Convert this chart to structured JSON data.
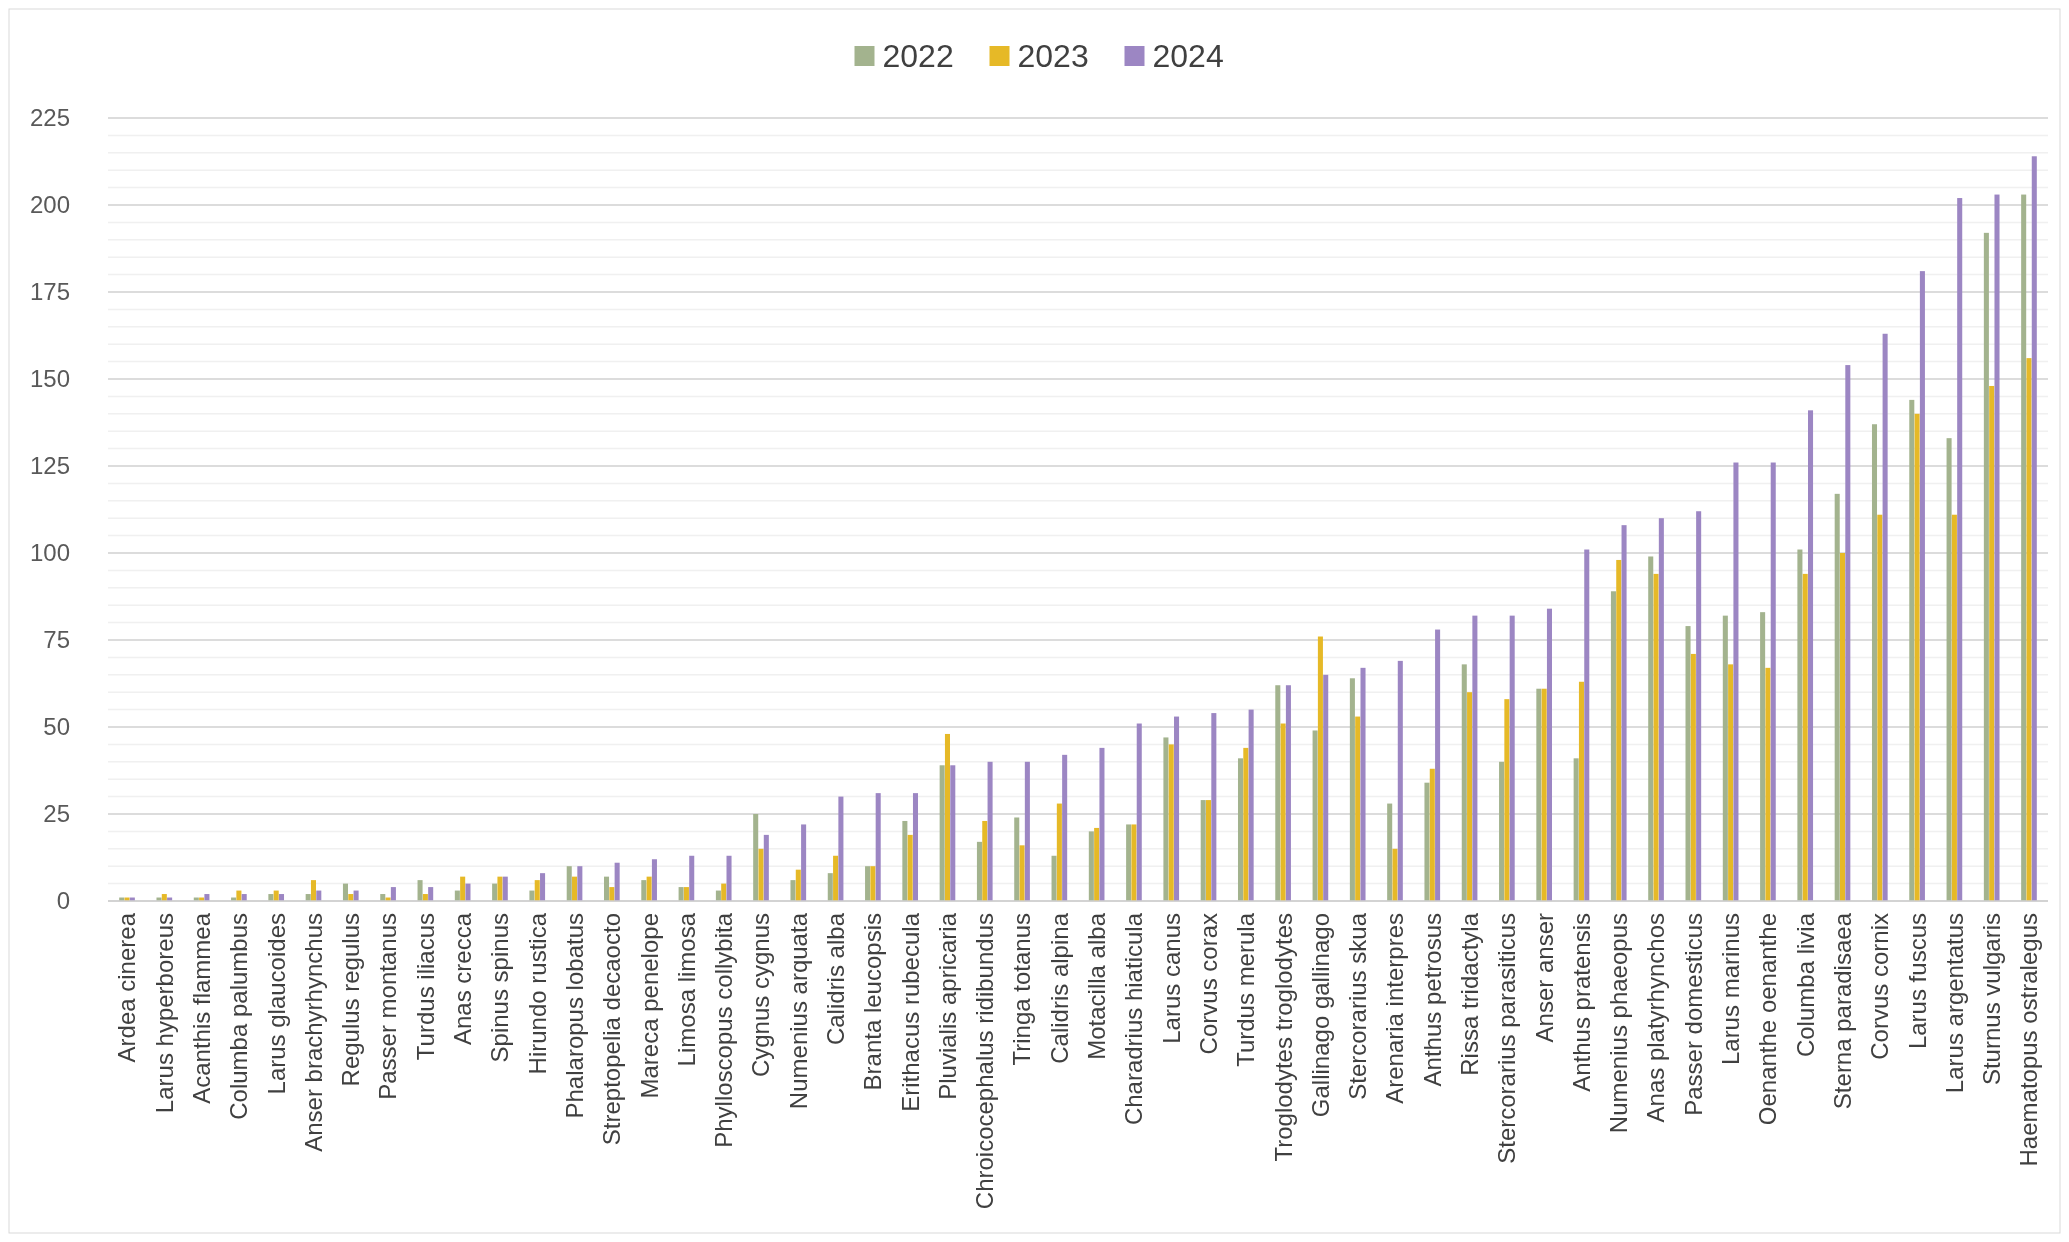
{
  "chart_data": {
    "type": "bar",
    "legend": "top",
    "grid": "y",
    "categories": [
      "Ardea cinerea",
      "Larus hyperboreus",
      "Acanthis flammea",
      "Columba palumbus",
      "Larus glaucoides",
      "Anser brachyrhynchus",
      "Regulus regulus",
      "Passer montanus",
      "Turdus iliacus",
      "Anas crecca",
      "Spinus spinus",
      "Hirundo rustica",
      "Phalaropus lobatus",
      "Streptopelia decaocto",
      "Mareca penelope",
      "Limosa limosa",
      "Phylloscopus collybita",
      "Cygnus cygnus",
      "Numenius arquata",
      "Calidris alba",
      "Branta leucopsis",
      "Erithacus rubecula",
      "Pluvialis apricaria",
      "Chroicocephalus ridibundus",
      "Tringa totanus",
      "Calidris alpina",
      "Motacilla alba",
      "Charadrius hiaticula",
      "Larus canus",
      "Corvus corax",
      "Turdus merula",
      "Troglodytes troglodytes",
      "Gallinago gallinago",
      "Stercorarius skua",
      "Arenaria interpres",
      "Anthus petrosus",
      "Rissa tridactyla",
      "Stercorarius parasiticus",
      "Anser anser",
      "Anthus pratensis",
      "Numenius phaeopus",
      "Anas platyrhynchos",
      "Passer domesticus",
      "Larus marinus",
      "Oenanthe oenanthe",
      "Columba livia",
      "Sterna paradisaea",
      "Corvus cornix",
      "Larus fuscus",
      "Larus argentatus",
      "Sturnus vulgaris",
      "Haematopus ostralegus"
    ],
    "series": [
      {
        "name": "2022",
        "color": "#a3b38e",
        "values": [
          1,
          1,
          1,
          1,
          2,
          2,
          5,
          2,
          6,
          3,
          5,
          3,
          10,
          7,
          6,
          4,
          3,
          25,
          6,
          8,
          10,
          23,
          39,
          17,
          24,
          13,
          20,
          22,
          47,
          29,
          41,
          62,
          49,
          64,
          28,
          34,
          68,
          40,
          61,
          41,
          89,
          99,
          79,
          82,
          83,
          101,
          117,
          137,
          144,
          133,
          192,
          203
        ]
      },
      {
        "name": "2023",
        "color": "#e6b927",
        "values": [
          1,
          2,
          1,
          3,
          3,
          6,
          2,
          1,
          2,
          7,
          7,
          6,
          7,
          4,
          7,
          4,
          5,
          15,
          9,
          13,
          10,
          19,
          48,
          23,
          16,
          28,
          21,
          22,
          45,
          29,
          44,
          51,
          76,
          53,
          15,
          38,
          60,
          58,
          61,
          63,
          98,
          94,
          71,
          68,
          67,
          94,
          100,
          111,
          140,
          111,
          148,
          156
        ]
      },
      {
        "name": "2024",
        "color": "#9c86c3",
        "values": [
          1,
          1,
          2,
          2,
          2,
          3,
          3,
          4,
          4,
          5,
          7,
          8,
          10,
          11,
          12,
          13,
          13,
          19,
          22,
          30,
          31,
          31,
          39,
          40,
          40,
          42,
          44,
          51,
          53,
          54,
          55,
          62,
          65,
          67,
          69,
          78,
          82,
          82,
          84,
          101,
          108,
          110,
          112,
          126,
          126,
          141,
          154,
          163,
          181,
          202,
          203,
          214
        ]
      }
    ],
    "ylim": [
      0,
      225
    ],
    "yticks": [
      0,
      25,
      50,
      75,
      100,
      125,
      150,
      175,
      200,
      225
    ]
  }
}
